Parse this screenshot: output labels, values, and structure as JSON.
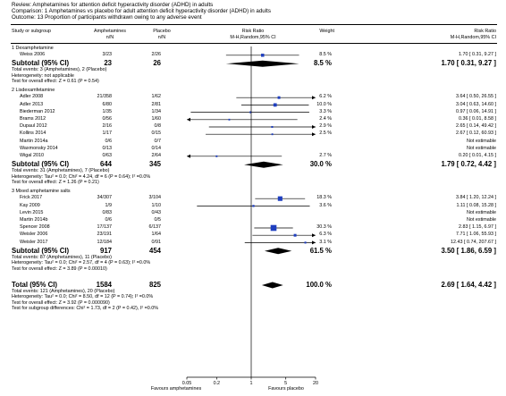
{
  "header": {
    "review": "Review:  Amphetamines for attention deficit hyperactivity disorder (ADHD) in adults",
    "comparison": "Comparison:  1 Amphetamines vs placebo for adult attention deficit hyperactivity disorder (ADHD) in adults",
    "outcome": "Outcome:  13 Proportion of participants withdrawn owing to any adverse event"
  },
  "columns": {
    "study": "Study or subgroup",
    "amph": "Amphetamines",
    "amph_sub": "n/N",
    "plac": "Placebo",
    "plac_sub": "n/N",
    "rr": "Risk Ratio",
    "rr_sub": "M-H,Random,95% CI",
    "weight": "Weight",
    "rr2": "Risk Ratio",
    "rr2_sub": "M-H,Random,95% CI"
  },
  "colors": {
    "square": "#1f3fbf",
    "diamond": "#000000"
  },
  "chart_data": {
    "type": "forest",
    "scale": "log",
    "xlim": [
      0.05,
      20
    ],
    "ticks": [
      "0.05",
      "0.2",
      "1",
      "5",
      "20"
    ],
    "null_line": 1,
    "favours_left": "Favours amphetamines",
    "favours_right": "Favours placebo",
    "groups": [
      {
        "title": "1 Dexamphetamine",
        "studies": [
          {
            "name": "Weiss 2006",
            "amph": "3/23",
            "plac": "2/26",
            "weight": "8.5 %",
            "ci_text": "1.70 [ 0.31, 9.27 ]",
            "rr": 1.7,
            "lo": 0.31,
            "hi": 9.27
          }
        ],
        "subtotal": {
          "label": "Subtotal (95% CI)",
          "amph": "23",
          "plac": "26",
          "weight": "8.5 %",
          "ci_text": "1.70 [ 0.31, 9.27 ]",
          "rr": 1.7,
          "lo": 0.31,
          "hi": 9.27
        },
        "notes": [
          "Total events: 3 (Amphetamines), 2 (Placebo)",
          "Heterogeneity: not applicable",
          "Test for overall effect: Z = 0.61 (P = 0.54)"
        ]
      },
      {
        "title": "2 Lisdexamfetamine",
        "studies": [
          {
            "name": "Adler 2008",
            "amph": "21/358",
            "plac": "1/62",
            "weight": "6.2 %",
            "ci_text": "3.64 [ 0.50, 26.55 ]",
            "rr": 3.64,
            "lo": 0.5,
            "hi": 26.55
          },
          {
            "name": "Adler 2013",
            "amph": "6/80",
            "plac": "2/81",
            "weight": "10.0 %",
            "ci_text": "3.04 [ 0.63, 14.60 ]",
            "rr": 3.04,
            "lo": 0.63,
            "hi": 14.6
          },
          {
            "name": "Biederman 2012",
            "amph": "1/35",
            "plac": "1/34",
            "weight": "3.3 %",
            "ci_text": "0.97 [ 0.06, 14.91 ]",
            "rr": 0.97,
            "lo": 0.06,
            "hi": 14.91
          },
          {
            "name": "Brams 2012",
            "amph": "0/56",
            "plac": "1/60",
            "weight": "2.4 %",
            "ci_text": "0.36 [ 0.01, 8.58 ]",
            "rr": 0.36,
            "lo": 0.01,
            "hi": 8.58
          },
          {
            "name": "Dupaul 2012",
            "amph": "2/16",
            "plac": "0/8",
            "weight": "2.9 %",
            "ci_text": "2.65 [ 0.14, 49.42 ]",
            "rr": 2.65,
            "lo": 0.14,
            "hi": 49.42
          },
          {
            "name": "Kollins 2014",
            "amph": "1/17",
            "plac": "0/15",
            "weight": "2.5 %",
            "ci_text": "2.67 [ 0.12, 60.93 ]",
            "rr": 2.67,
            "lo": 0.12,
            "hi": 60.93
          },
          {
            "name": "Martin 2014a",
            "amph": "0/6",
            "plac": "0/7",
            "weight": "",
            "ci_text": "Not estimable",
            "rr": null,
            "lo": null,
            "hi": null
          },
          {
            "name": "Waxmonsky 2014",
            "amph": "0/13",
            "plac": "0/14",
            "weight": "",
            "ci_text": "Not estimable",
            "rr": null,
            "lo": null,
            "hi": null
          },
          {
            "name": "Wigal 2010",
            "amph": "0/63",
            "plac": "2/64",
            "weight": "2.7 %",
            "ci_text": "0.20 [ 0.01, 4.15 ]",
            "rr": 0.2,
            "lo": 0.01,
            "hi": 4.15
          }
        ],
        "subtotal": {
          "label": "Subtotal (95% CI)",
          "amph": "644",
          "plac": "345",
          "weight": "30.0 %",
          "ci_text": "1.79 [ 0.72, 4.42 ]",
          "rr": 1.79,
          "lo": 0.72,
          "hi": 4.42
        },
        "notes": [
          "Total events: 31 (Amphetamines), 7 (Placebo)",
          "Heterogeneity: Tau² = 0.0; Chi² = 4.24, df = 6 (P = 0.64); I² =0.0%",
          "Test for overall effect: Z = 1.26 (P = 0.21)"
        ]
      },
      {
        "title": "3 Mixed amphetamine salts",
        "studies": [
          {
            "name": "Frick 2017",
            "amph": "34/307",
            "plac": "3/104",
            "weight": "18.3 %",
            "ci_text": "3.84 [ 1.20, 12.24 ]",
            "rr": 3.84,
            "lo": 1.2,
            "hi": 12.24
          },
          {
            "name": "Kay 2009",
            "amph": "1/9",
            "plac": "1/10",
            "weight": "3.6 %",
            "ci_text": "1.11 [ 0.08, 15.28 ]",
            "rr": 1.11,
            "lo": 0.08,
            "hi": 15.28
          },
          {
            "name": "Levin 2015",
            "amph": "0/83",
            "plac": "0/43",
            "weight": "",
            "ci_text": "Not estimable",
            "rr": null,
            "lo": null,
            "hi": null
          },
          {
            "name": "Martin 2014b",
            "amph": "0/6",
            "plac": "0/5",
            "weight": "",
            "ci_text": "Not estimable",
            "rr": null,
            "lo": null,
            "hi": null
          },
          {
            "name": "Spencer 2008",
            "amph": "17/137",
            "plac": "6/137",
            "weight": "30.3 %",
            "ci_text": "2.83 [ 1.15, 6.97 ]",
            "rr": 2.83,
            "lo": 1.15,
            "hi": 6.97
          },
          {
            "name": "Weisler 2006",
            "amph": "23/191",
            "plac": "1/64",
            "weight": "6.3 %",
            "ci_text": "7.71 [ 1.06, 55.93 ]",
            "rr": 7.71,
            "lo": 1.06,
            "hi": 55.93
          },
          {
            "name": "Weisler 2017",
            "amph": "12/184",
            "plac": "0/91",
            "weight": "3.1 %",
            "ci_text": "12.43 [ 0.74, 207.67 ]",
            "rr": 12.43,
            "lo": 0.74,
            "hi": 207.67
          }
        ],
        "subtotal": {
          "label": "Subtotal (95% CI)",
          "amph": "917",
          "plac": "454",
          "weight": "61.5 %",
          "ci_text": "3.50 [ 1.86, 6.59 ]",
          "rr": 3.5,
          "lo": 1.86,
          "hi": 6.59
        },
        "notes": [
          "Total events: 87 (Amphetamines), 11 (Placebo)",
          "Heterogeneity: Tau² = 0.0; Chi² = 2.57, df = 4 (P = 0.63); I² =0.0%",
          "Test for overall effect: Z = 3.89 (P = 0.00010)"
        ]
      }
    ],
    "total": {
      "label": "Total (95% CI)",
      "amph": "1584",
      "plac": "825",
      "weight": "100.0 %",
      "ci_text": "2.69 [ 1.64, 4.42 ]",
      "rr": 2.69,
      "lo": 1.64,
      "hi": 4.42
    },
    "total_notes": [
      "Total events: 121 (Amphetamines), 20 (Placebo)",
      "Heterogeneity: Tau² = 0.0; Chi² = 8.50, df = 12 (P = 0.74); I² =0.0%",
      "Test for overall effect: Z = 3.92 (P = 0.000090)",
      "Test for subgroup differences: Chi² = 1.73, df = 2 (P = 0.42), I² =0.0%"
    ]
  }
}
